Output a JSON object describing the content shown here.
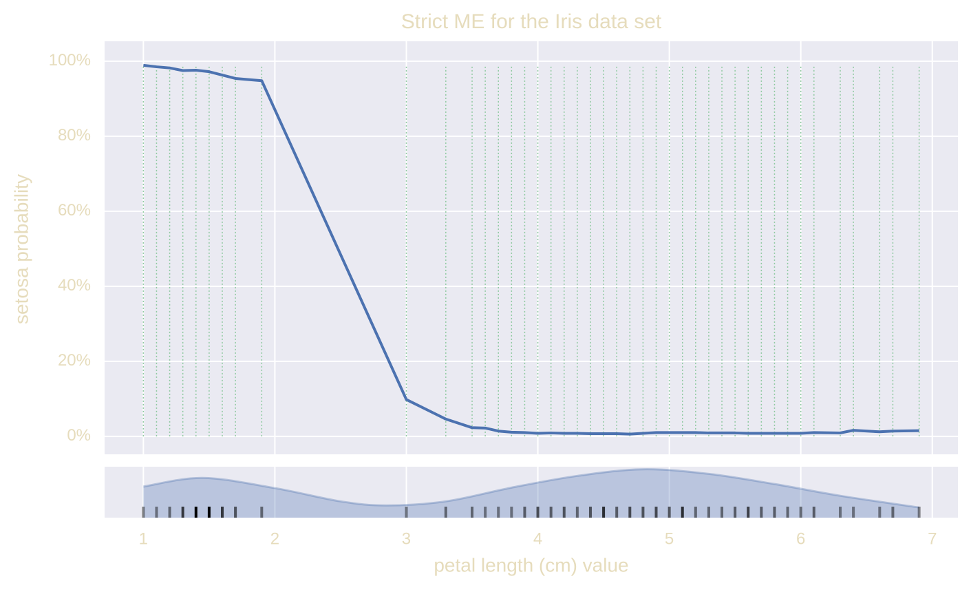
{
  "chart_data": {
    "type": "line",
    "title": "Strict ME for the Iris data set",
    "xlabel": "petal length (cm) value",
    "ylabel": "setosa probability",
    "x": [
      1.0,
      1.1,
      1.2,
      1.3,
      1.4,
      1.5,
      1.6,
      1.7,
      1.9,
      3.0,
      3.3,
      3.5,
      3.6,
      3.7,
      3.8,
      3.9,
      4.0,
      4.1,
      4.2,
      4.3,
      4.4,
      4.5,
      4.6,
      4.7,
      4.8,
      4.9,
      5.0,
      5.1,
      5.2,
      5.3,
      5.4,
      5.5,
      5.6,
      5.7,
      5.8,
      5.9,
      6.0,
      6.1,
      6.3,
      6.4,
      6.6,
      6.7,
      6.9
    ],
    "series": [
      {
        "name": "setosa",
        "color": "#4c72b0",
        "values": [
          98.9,
          98.5,
          98.2,
          97.5,
          97.6,
          97.2,
          96.3,
          95.4,
          94.8,
          9.8,
          4.6,
          2.3,
          2.2,
          1.4,
          1.1,
          1.0,
          0.8,
          0.9,
          0.8,
          0.8,
          0.7,
          0.7,
          0.7,
          0.6,
          0.8,
          1.0,
          1.0,
          1.0,
          1.0,
          0.9,
          0.9,
          0.9,
          0.8,
          0.8,
          0.8,
          0.8,
          0.8,
          1.0,
          0.9,
          1.6,
          1.2,
          1.4,
          1.5
        ]
      }
    ],
    "sample_lines": {
      "color": "#8fc9a0",
      "ymin": 0,
      "ymax": 99
    },
    "rug_counts": [
      1,
      1,
      2,
      7,
      13,
      13,
      7,
      4,
      2,
      1,
      2,
      2,
      1,
      1,
      1,
      3,
      5,
      3,
      4,
      2,
      4,
      8,
      3,
      5,
      4,
      5,
      4,
      8,
      2,
      2,
      2,
      3,
      6,
      3,
      3,
      2,
      2,
      3,
      1,
      1,
      1,
      2,
      1
    ],
    "density": {
      "color": "#4c72b0",
      "ylim": [
        0,
        1
      ],
      "x": [
        1.0,
        1.45,
        2.0,
        2.5,
        2.85,
        3.3,
        3.8,
        4.3,
        4.8,
        5.3,
        5.8,
        6.3,
        6.9
      ],
      "values": [
        0.61,
        0.78,
        0.58,
        0.32,
        0.24,
        0.32,
        0.59,
        0.82,
        0.95,
        0.86,
        0.66,
        0.43,
        0.2
      ]
    },
    "xlim": [
      0.705,
      7.195
    ],
    "xticks": [
      1,
      2,
      3,
      4,
      5,
      6,
      7
    ],
    "ylim": [
      -4.8,
      105.3
    ],
    "yticks": [
      {
        "value": 0,
        "label": "0%"
      },
      {
        "value": 20,
        "label": "20%"
      },
      {
        "value": 40,
        "label": "40%"
      },
      {
        "value": 60,
        "label": "60%"
      },
      {
        "value": 80,
        "label": "80%"
      },
      {
        "value": 100,
        "label": "100%"
      }
    ],
    "grid": true
  }
}
